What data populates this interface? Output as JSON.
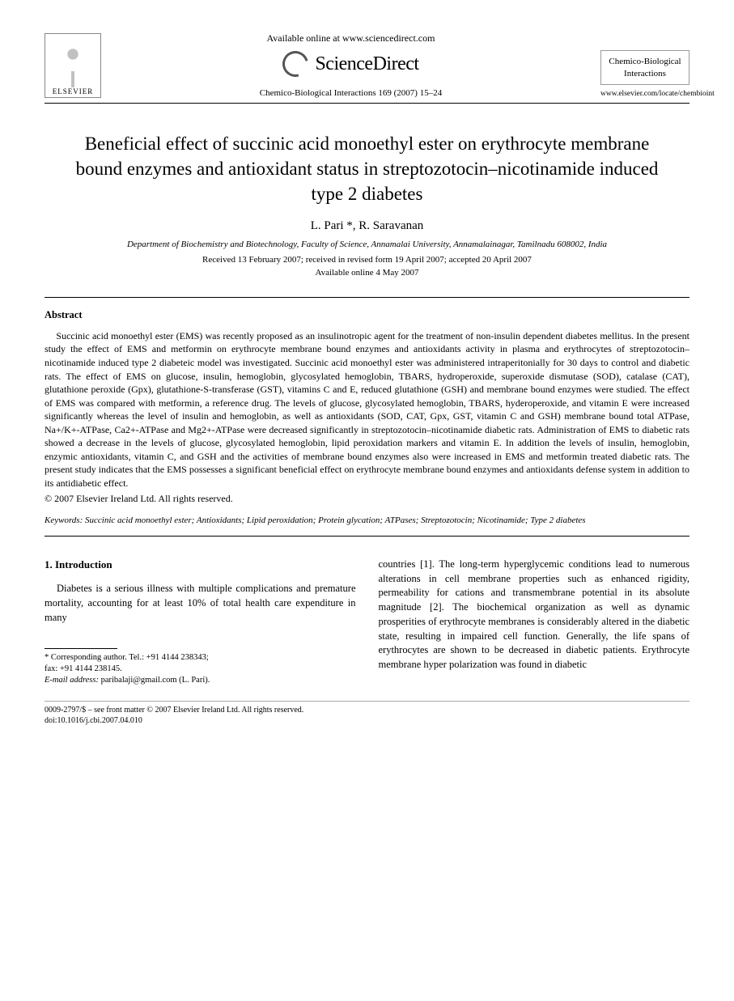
{
  "header": {
    "elsevier_label": "ELSEVIER",
    "available_online": "Available online at www.sciencedirect.com",
    "sciencedirect": "ScienceDirect",
    "citation": "Chemico-Biological Interactions 169 (2007) 15–24",
    "journal_name_line1": "Chemico-Biological",
    "journal_name_line2": "Interactions",
    "journal_url": "www.elsevier.com/locate/chembioint"
  },
  "paper": {
    "title": "Beneficial effect of succinic acid monoethyl ester on erythrocyte membrane bound enzymes and antioxidant status in streptozotocin–nicotinamide induced type 2 diabetes",
    "authors": "L. Pari *, R. Saravanan",
    "affiliation": "Department of Biochemistry and Biotechnology, Faculty of Science, Annamalai University, Annamalainagar, Tamilnadu 608002, India",
    "received": "Received 13 February 2007; received in revised form 19 April 2007; accepted 20 April 2007",
    "available": "Available online 4 May 2007"
  },
  "abstract": {
    "heading": "Abstract",
    "body": "Succinic acid monoethyl ester (EMS) was recently proposed as an insulinotropic agent for the treatment of non-insulin dependent diabetes mellitus. In the present study the effect of EMS and metformin on erythrocyte membrane bound enzymes and antioxidants activity in plasma and erythrocytes of streptozotocin–nicotinamide induced type 2 diabeteic model was investigated. Succinic acid monoethyl ester was administered intraperitonially for 30 days to control and diabetic rats. The effect of EMS on glucose, insulin, hemoglobin, glycosylated hemoglobin, TBARS, hydroperoxide, superoxide dismutase (SOD), catalase (CAT), glutathione peroxide (Gpx), glutathione-S-transferase (GST), vitamins C and E, reduced glutathione (GSH) and membrane bound enzymes were studied. The effect of EMS was compared with metformin, a reference drug. The levels of glucose, glycosylated hemoglobin, TBARS, hyderoperoxide, and vitamin E were increased significantly whereas the level of insulin and hemoglobin, as well as antioxidants (SOD, CAT, Gpx, GST, vitamin C and GSH) membrane bound total ATPase, Na+/K+-ATPase, Ca2+-ATPase and Mg2+-ATPase were decreased significantly in streptozotocin–nicotinamide diabetic rats. Administration of EMS to diabetic rats showed a decrease in the levels of glucose, glycosylated hemoglobin, lipid peroxidation markers and vitamin E. In addition the levels of insulin, hemoglobin, enzymic antioxidants, vitamin C, and GSH and the activities of membrane bound enzymes also were increased in EMS and metformin treated diabetic rats. The present study indicates that the EMS possesses a significant beneficial effect on erythrocyte membrane bound enzymes and antioxidants defense system in addition to its antidiabetic effect.",
    "copyright": "© 2007 Elsevier Ireland Ltd. All rights reserved."
  },
  "keywords": {
    "label": "Keywords:",
    "list": "Succinic acid monoethyl ester; Antioxidants; Lipid peroxidation; Protein glycation; ATPases; Streptozotocin; Nicotinamide; Type 2 diabetes"
  },
  "intro": {
    "heading": "1.  Introduction",
    "col1_p1": "Diabetes is a serious illness with multiple complications and premature mortality, accounting for at least 10% of total health care expenditure in many",
    "col2_p1": "countries [1]. The long-term hyperglycemic conditions lead to numerous alterations in cell membrane properties such as enhanced rigidity, permeability for cations and transmembrane potential in its absolute magnitude [2]. The biochemical organization as well as dynamic prosperities of erythrocyte membranes is considerably altered in the diabetic state, resulting in impaired cell function. Generally, the life spans of erythrocytes are shown to be decreased in diabetic patients. Erythrocyte membrane hyper polarization was found in diabetic"
  },
  "footnote": {
    "corr": "* Corresponding author. Tel.: +91 4144 238343;",
    "fax": "fax: +91 4144 238145.",
    "email_label": "E-mail address:",
    "email": "paribalaji@gmail.com",
    "email_who": "(L. Pari)."
  },
  "footer": {
    "line1": "0009-2797/$ – see front matter © 2007 Elsevier Ireland Ltd. All rights reserved.",
    "line2": "doi:10.1016/j.cbi.2007.04.010"
  },
  "colors": {
    "text": "#000000",
    "bg": "#ffffff",
    "rule": "#000000"
  },
  "typography": {
    "title_fontsize": 23,
    "body_fontsize": 12.5,
    "abstract_fontsize": 12,
    "footer_fontsize": 10,
    "font_family": "Times New Roman"
  }
}
